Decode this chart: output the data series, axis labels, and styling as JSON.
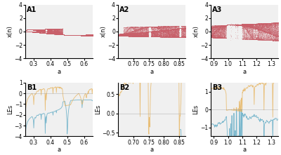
{
  "panels": [
    {
      "label": "A1",
      "xlim": [
        0.25,
        0.65
      ],
      "ylim": [
        -4,
        4
      ],
      "xticks": [
        0.3,
        0.4,
        0.5,
        0.6
      ],
      "ylabel": "x(n)"
    },
    {
      "label": "A2",
      "xlim": [
        0.65,
        0.87
      ],
      "ylim": [
        -4,
        4
      ],
      "xticks": [
        0.7,
        0.75,
        0.8,
        0.85
      ],
      "ylabel": "x(n)"
    },
    {
      "label": "A3",
      "xlim": [
        0.88,
        1.35
      ],
      "ylim": [
        -4,
        4
      ],
      "xticks": [
        0.9,
        1.0,
        1.1,
        1.2,
        1.3
      ],
      "ylabel": "x(n)"
    },
    {
      "label": "B1",
      "xlim": [
        0.25,
        0.65
      ],
      "ylim": [
        -4,
        1
      ],
      "xticks": [
        0.3,
        0.4,
        0.5,
        0.6
      ],
      "ylabel": "LEs"
    },
    {
      "label": "B2",
      "xlim": [
        0.65,
        0.87
      ],
      "ylim": [
        -0.6,
        0.8
      ],
      "xticks": [
        0.7,
        0.75,
        0.8,
        0.85
      ],
      "ylabel": "LEs"
    },
    {
      "label": "B3",
      "xlim": [
        0.88,
        1.35
      ],
      "ylim": [
        -1.5,
        1.5
      ],
      "xticks": [
        0.9,
        1.0,
        1.1,
        1.2,
        1.3
      ],
      "ylabel": "LEs"
    }
  ],
  "bifurcation_color": "#c8606a",
  "le1_color": "#e8b96a",
  "le2_color": "#6ab0c8",
  "background_color": "#f0f0f0",
  "xlabel": "a",
  "label_fontsize": 7,
  "tick_fontsize": 5.5,
  "axis_label_fontsize": 6
}
